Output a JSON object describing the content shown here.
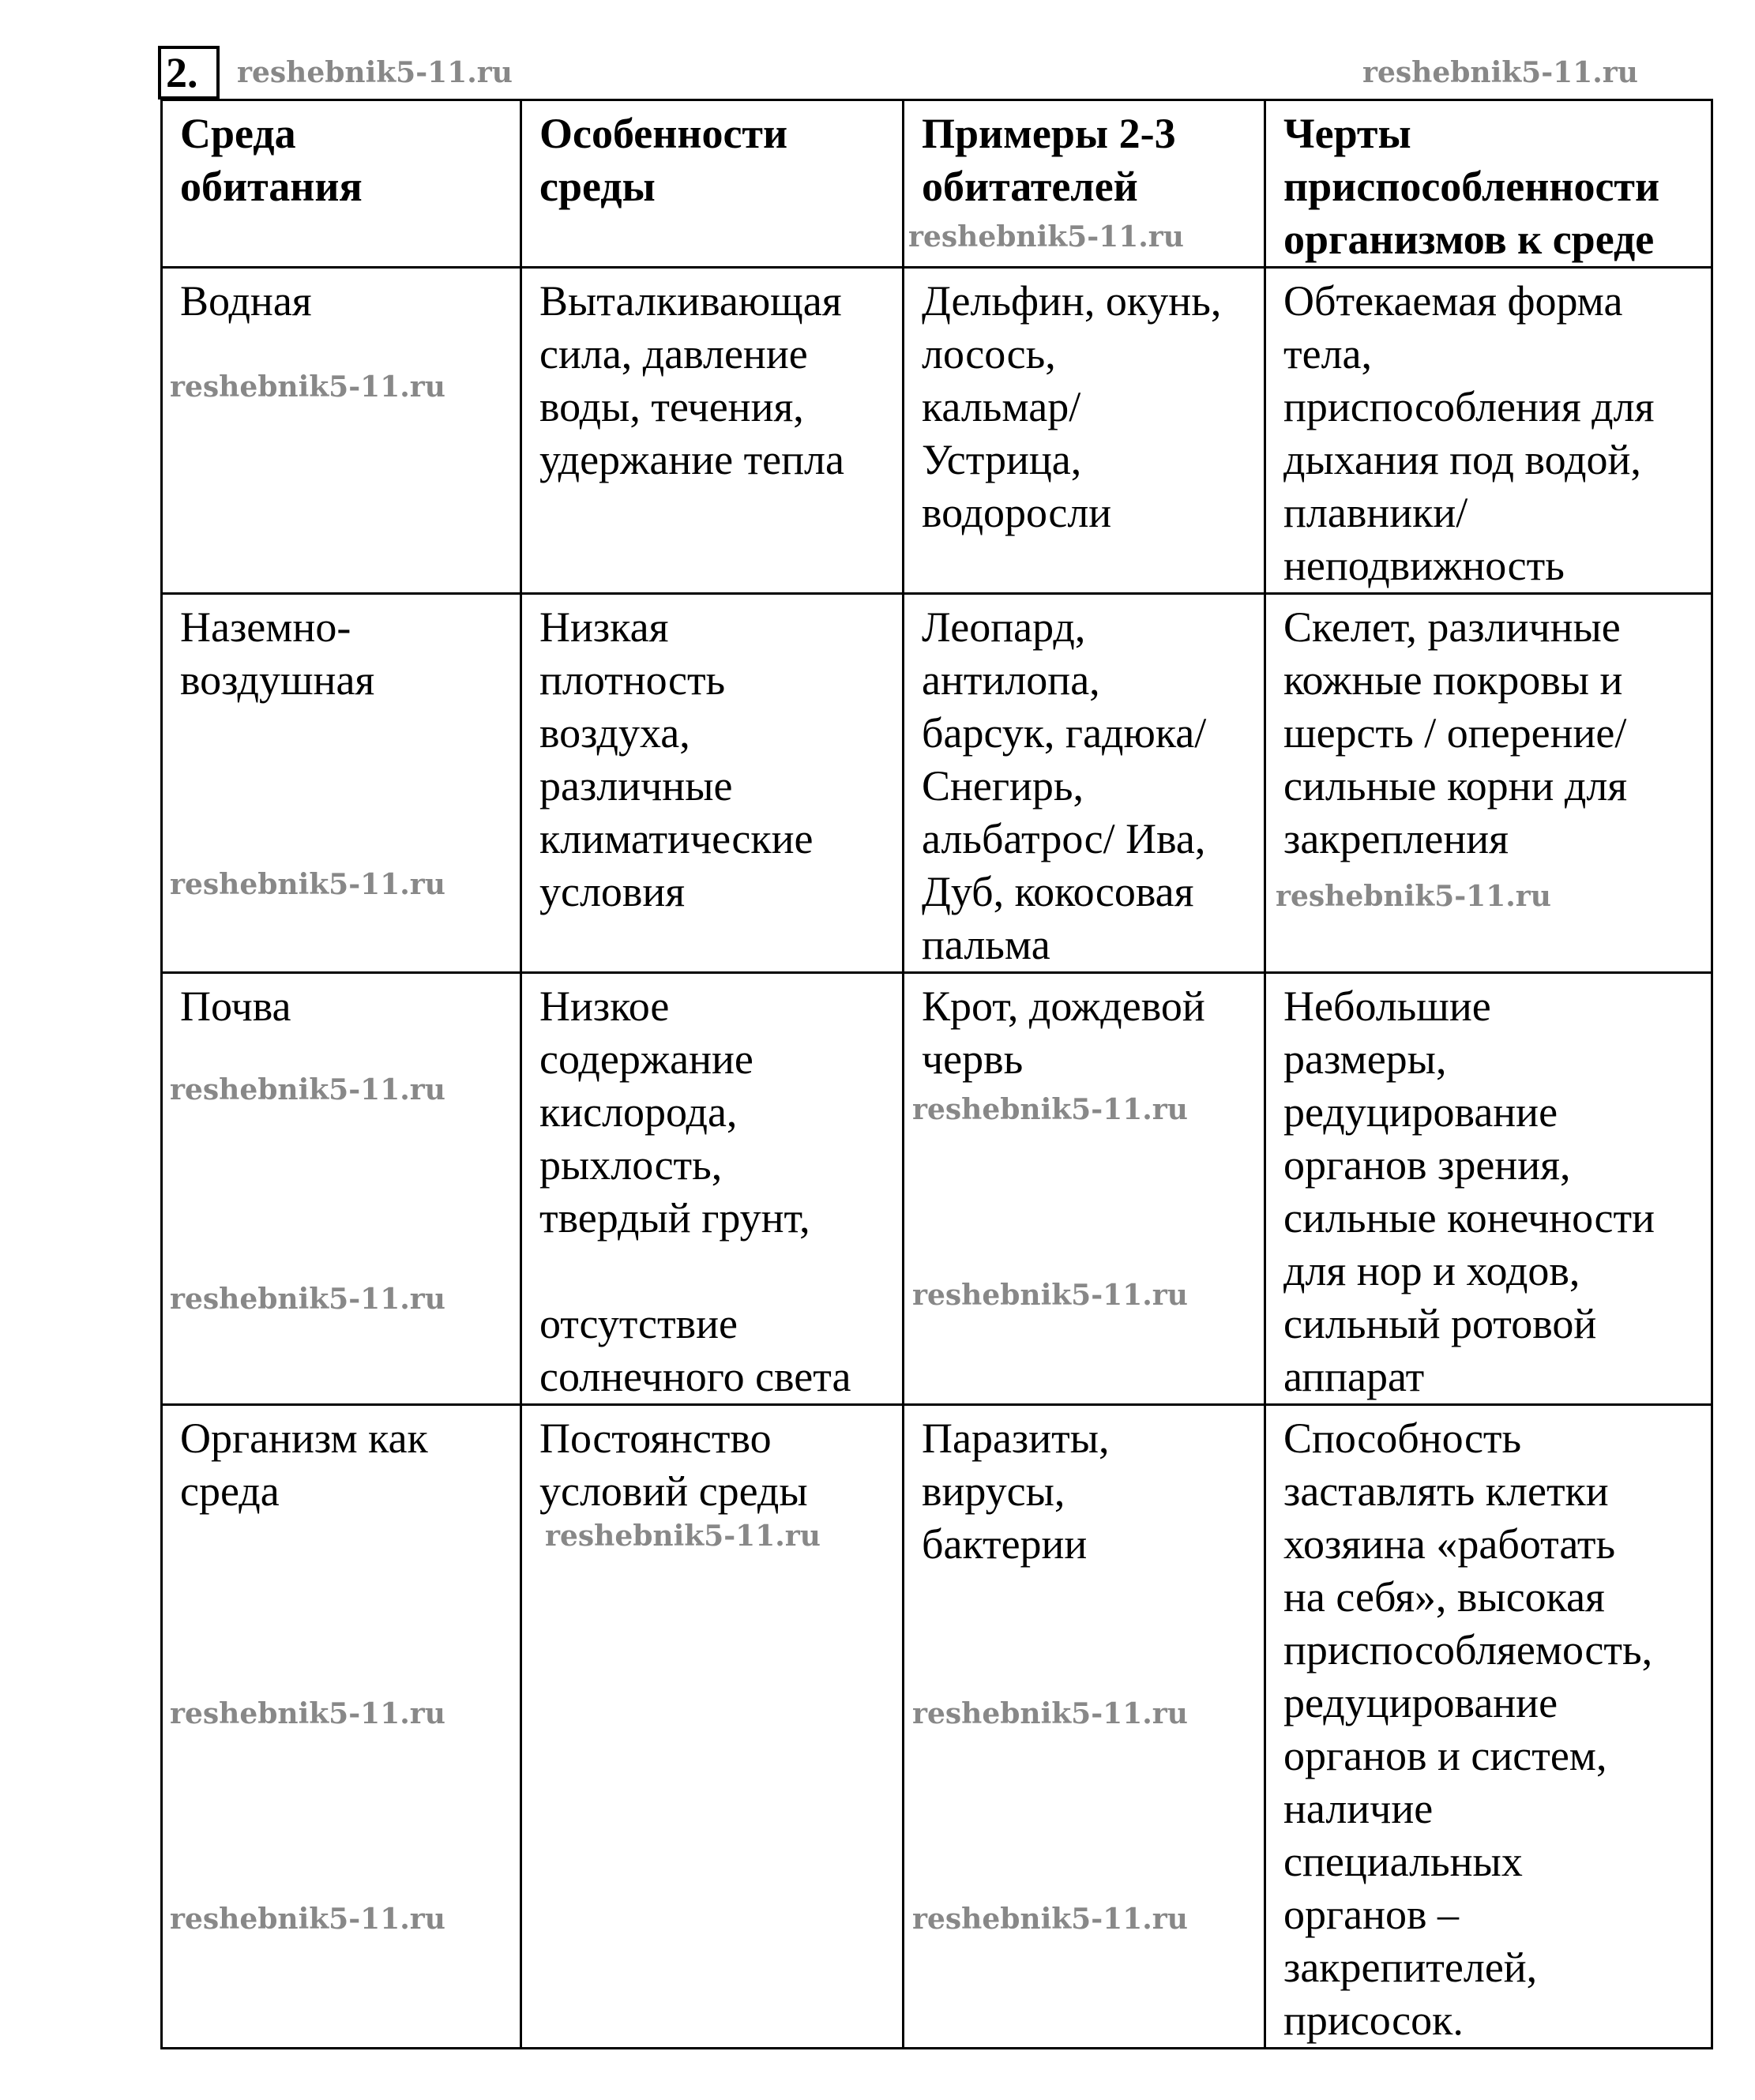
{
  "task_number": "2.",
  "watermark": "reshebnik5-11.ru",
  "table": {
    "headers": [
      "Среда\nобитания",
      "Особенности\nсреды",
      "Примеры 2-3\nобитателей",
      "Черты\nприспособленности\nорганизмов к среде"
    ],
    "rows": [
      [
        "Водная",
        "Выталкивающая\nсила, давление\nводы, течения,\nудержание тепла",
        "Дельфин, окунь,\nлосось,\nкальмар/\nУстрица,\nводоросли",
        "Обтекаемая форма\nтела,\nприспособления для\nдыхания под водой,\nплавники/\nнеподвижность"
      ],
      [
        "Наземно-\nвоздушная",
        "Низкая\nплотность\nвоздуха,\nразличные\nклиматические\nусловия",
        "Леопард,\nантилопа,\nбарсук, гадюка/\nСнегирь,\nальбатрос/ Ива,\nДуб, кокосовая\nпальма",
        "Скелет, различные\nкожные покровы и\nшерсть / оперение/\nсильные корни для\nзакрепления"
      ],
      [
        "Почва",
        "Низкое\nсодержание\nкислорода,\nрыхлость,\nтвердый грунт,\n\nотсутствие\nсолнечного света",
        "Крот, дождевой\nчервь",
        "Небольшие\nразмеры,\nредуцирование\nорганов зрения,\nсильные конечности\nдля нор и ходов,\nсильный ротовой\nаппарат"
      ],
      [
        "Организм как\nсреда",
        "Постоянство\nусловий среды",
        "Паразиты,\nвирусы,\nбактерии",
        "Способность\nзаставлять клетки\nхозяина «работать\nна себя», высокая\nприспособляемость,\nредуцирование\nорганов и систем,\nналичие\nспециальных\nорганов –\nзакрепителей,\nприсосок."
      ]
    ]
  }
}
